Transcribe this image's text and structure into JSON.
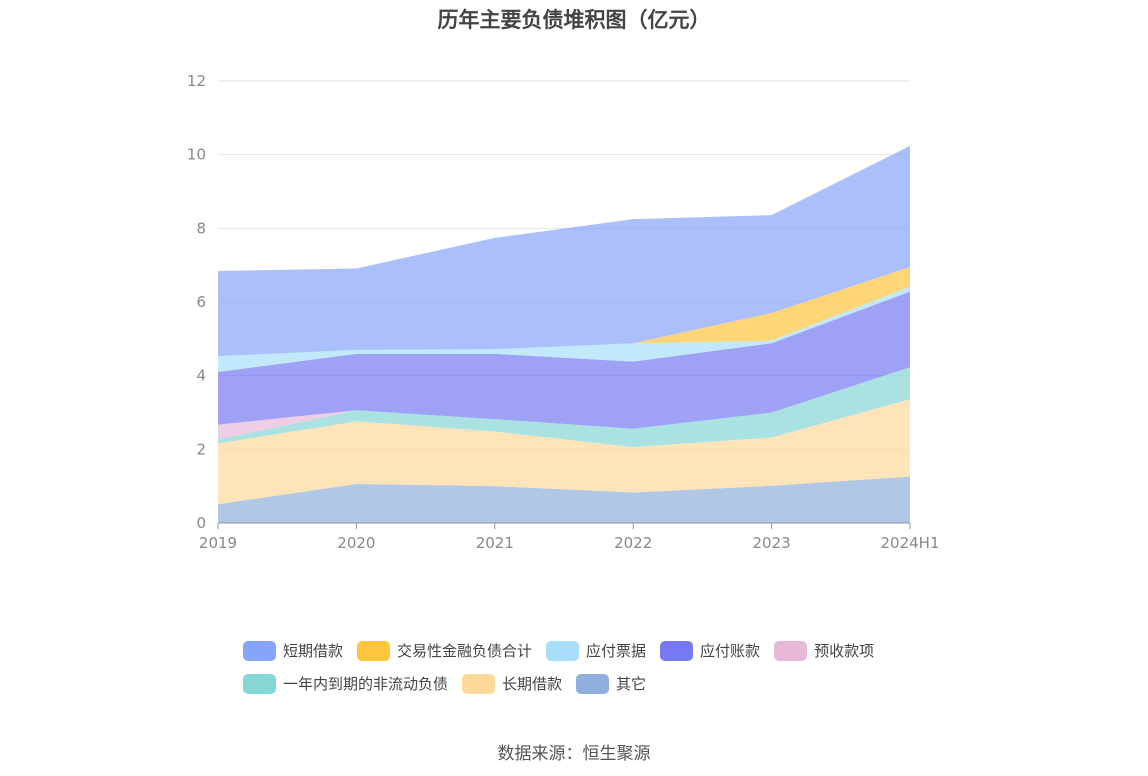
{
  "chart_data": {
    "type": "area",
    "stacked": true,
    "title": "历年主要负债堆积图（亿元）",
    "categories": [
      "2019",
      "2020",
      "2021",
      "2022",
      "2023",
      "2024H1"
    ],
    "ylim": [
      0,
      12
    ],
    "yticks": [
      0,
      2,
      4,
      6,
      8,
      10,
      12
    ],
    "grid": true,
    "legend_position": "bottom",
    "series": [
      {
        "name": "其它",
        "color": "#8fb0dc",
        "values": [
          0.51,
          1.06,
          1.0,
          0.83,
          1.01,
          1.26
        ]
      },
      {
        "name": "长期借款",
        "color": "#ffd99b",
        "values": [
          1.65,
          1.7,
          1.48,
          1.23,
          1.31,
          2.1
        ]
      },
      {
        "name": "一年内到期的非流动负债",
        "color": "#86d6d6",
        "values": [
          0.11,
          0.3,
          0.34,
          0.5,
          0.68,
          0.87
        ]
      },
      {
        "name": "预收款项",
        "color": "#e8b8d8",
        "values": [
          0.4,
          0,
          0,
          0,
          0,
          0
        ]
      },
      {
        "name": "应付账款",
        "color": "#7679f2",
        "values": [
          1.43,
          1.53,
          1.77,
          1.82,
          1.88,
          2.05
        ]
      },
      {
        "name": "应付票据",
        "color": "#a8defa",
        "values": [
          0.43,
          0.11,
          0.13,
          0.5,
          0.07,
          0.14
        ]
      },
      {
        "name": "交易性金融负债合计",
        "color": "#ffc53d",
        "values": [
          0,
          0,
          0,
          0,
          0.75,
          0.53
        ]
      },
      {
        "name": "短期借款",
        "color": "#86a4fa",
        "values": [
          2.31,
          2.21,
          3.02,
          3.37,
          2.66,
          3.29
        ]
      }
    ],
    "legend_order": [
      "短期借款",
      "交易性金融负债合计",
      "应付票据",
      "应付账款",
      "预收款项",
      "一年内到期的非流动负债",
      "长期借款",
      "其它"
    ]
  },
  "source": "数据来源：恒生聚源"
}
